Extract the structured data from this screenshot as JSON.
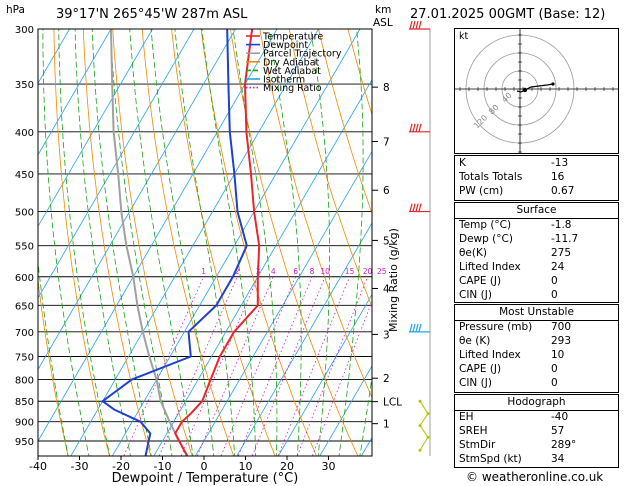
{
  "header": {
    "hpa_unit": "hPa",
    "location": "39°17'N  265°45'W  287m  ASL",
    "km_unit": "km",
    "asl_unit": "ASL",
    "datetime": "27.01.2025  00GMT  (Base: 12)"
  },
  "chart_data": {
    "type": "line",
    "subtype": "skew-T log-P",
    "xlabel": "Dewpoint / Temperature (°C)",
    "ylabel_right": "Mixing Ratio (g/kg)",
    "x_ticks": [
      "-40",
      "-30",
      "-20",
      "-10",
      "0",
      "10",
      "20",
      "30"
    ],
    "x_tick_values": [
      -40,
      -30,
      -20,
      -10,
      0,
      10,
      20,
      30
    ],
    "pressure_levels": [
      300,
      350,
      400,
      450,
      500,
      550,
      600,
      650,
      700,
      750,
      800,
      850,
      900,
      950
    ],
    "pressure_labels": [
      "300",
      "350",
      "400",
      "450",
      "500",
      "550",
      "600",
      "650",
      "700",
      "750",
      "800",
      "850",
      "900",
      "950"
    ],
    "km_levels": [
      {
        "label": "8",
        "p": 353
      },
      {
        "label": "7",
        "p": 411
      },
      {
        "label": "6",
        "p": 471
      },
      {
        "label": "5",
        "p": 542
      },
      {
        "label": "4",
        "p": 620
      },
      {
        "label": "3",
        "p": 705
      },
      {
        "label": "2",
        "p": 797
      },
      {
        "label": "LCL",
        "p": 851
      },
      {
        "label": "1",
        "p": 905
      }
    ],
    "mixing_ratio_labels": [
      "1",
      "2",
      "3",
      "4",
      "6",
      "8",
      "10",
      "15",
      "20",
      "25"
    ],
    "mixing_ratio_values": [
      1,
      2,
      3,
      4,
      6,
      8,
      10,
      15,
      20,
      25
    ],
    "legend": [
      {
        "name": "Temperature",
        "color": "#e8262a"
      },
      {
        "name": "Dewpoint",
        "color": "#1f3fd0"
      },
      {
        "name": "Parcel Trajectory",
        "color": "#a0a0a0"
      },
      {
        "name": "Dry Adiabat",
        "color": "#f08a00"
      },
      {
        "name": "Wet Adiabat",
        "color": "#19a319"
      },
      {
        "name": "Isotherm",
        "color": "#23a4e8"
      },
      {
        "name": "Mixing Ratio",
        "color": "#d117c9"
      }
    ],
    "temperature": {
      "p": [
        990,
        960,
        930,
        900,
        880,
        850,
        800,
        750,
        700,
        650,
        600,
        550,
        500,
        450,
        400,
        350,
        300
      ],
      "t": [
        -2,
        -5,
        -8,
        -8,
        -7,
        -6,
        -7,
        -8,
        -8,
        -6,
        -10,
        -14,
        -20,
        -26,
        -33,
        -40,
        -46
      ]
    },
    "dewpoint": {
      "p": [
        990,
        960,
        930,
        900,
        870,
        850,
        800,
        750,
        700,
        650,
        600,
        550,
        500,
        450,
        400,
        350,
        300
      ],
      "t": [
        -12,
        -13,
        -14,
        -18,
        -26,
        -30,
        -26,
        -15,
        -19,
        -16,
        -16,
        -17,
        -24,
        -30,
        -37,
        -44,
        -52
      ]
    },
    "parcel": {
      "p": [
        990,
        950,
        900,
        850,
        800,
        750,
        700,
        650,
        600,
        550,
        500,
        450,
        400,
        350,
        300
      ],
      "t": [
        -2,
        -6,
        -11,
        -16,
        -20,
        -25,
        -30,
        -35,
        -40,
        -46,
        -52,
        -58,
        -65,
        -72,
        -80
      ]
    }
  },
  "indices": {
    "rows": [
      {
        "label": "K",
        "value": "-13"
      },
      {
        "label": "Totals Totals",
        "value": "16"
      },
      {
        "label": "PW (cm)",
        "value": "0.67"
      }
    ]
  },
  "surface": {
    "title": "Surface",
    "rows": [
      {
        "label": "Temp (°C)",
        "value": "-1.8"
      },
      {
        "label": "Dewp (°C)",
        "value": "-11.7"
      },
      {
        "label": "θe(K)",
        "value": "275"
      },
      {
        "label": "Lifted Index",
        "value": "24"
      },
      {
        "label": "CAPE (J)",
        "value": "0"
      },
      {
        "label": "CIN (J)",
        "value": "0"
      }
    ]
  },
  "most_unstable": {
    "title": "Most Unstable",
    "rows": [
      {
        "label": "Pressure (mb)",
        "value": "700"
      },
      {
        "label": "θe (K)",
        "value": "293"
      },
      {
        "label": "Lifted Index",
        "value": "10"
      },
      {
        "label": "CAPE (J)",
        "value": "0"
      },
      {
        "label": "CIN (J)",
        "value": "0"
      }
    ]
  },
  "hodograph": {
    "title": "Hodograph",
    "kt_label": "kt",
    "ring_labels": [
      "120",
      "80",
      "40"
    ],
    "rows": [
      {
        "label": "EH",
        "value": "-40"
      },
      {
        "label": "SREH",
        "value": "57"
      },
      {
        "label": "StmDir",
        "value": "289°"
      },
      {
        "label": "StmSpd (kt)",
        "value": "34"
      }
    ]
  },
  "footer": {
    "copyright": "© weatheronline.co.uk"
  }
}
